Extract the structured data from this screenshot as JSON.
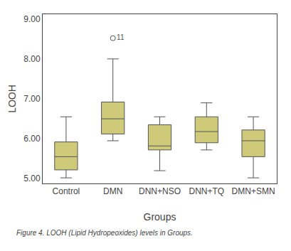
{
  "chart_data": {
    "type": "box",
    "categories": [
      "Control",
      "DMN",
      "DNN+NSO",
      "DNN+TQ",
      "DMN+SMN"
    ],
    "whisker_low": [
      5.02,
      5.95,
      5.2,
      5.72,
      5.02
    ],
    "q1": [
      5.22,
      6.12,
      5.72,
      5.9,
      5.55
    ],
    "median": [
      5.55,
      6.5,
      5.82,
      6.18,
      5.95
    ],
    "q3": [
      5.92,
      6.92,
      6.35,
      6.55,
      6.22
    ],
    "whisker_high": [
      6.55,
      8.0,
      6.55,
      6.9,
      6.55
    ],
    "outliers": [
      [],
      [
        8.52
      ],
      [],
      [],
      []
    ],
    "outlier_labels": [
      [],
      [
        "11"
      ],
      [],
      [],
      []
    ],
    "color": "#cfc97a",
    "ylim": [
      4.88,
      9.12
    ],
    "yticks": [
      {
        "value": 5.0,
        "label": "5.00"
      },
      {
        "value": 6.0,
        "label": "6.00"
      },
      {
        "value": 7.0,
        "label": "7.00"
      },
      {
        "value": 8.0,
        "label": "8.00"
      },
      {
        "value": 9.0,
        "label": "9.00"
      }
    ],
    "ylabel": "LOOH",
    "xlabel": "Groups",
    "caption": "Figure 4. LOOH (Lipid Hydropeoxides) levels in Groups.",
    "grid": false
  }
}
